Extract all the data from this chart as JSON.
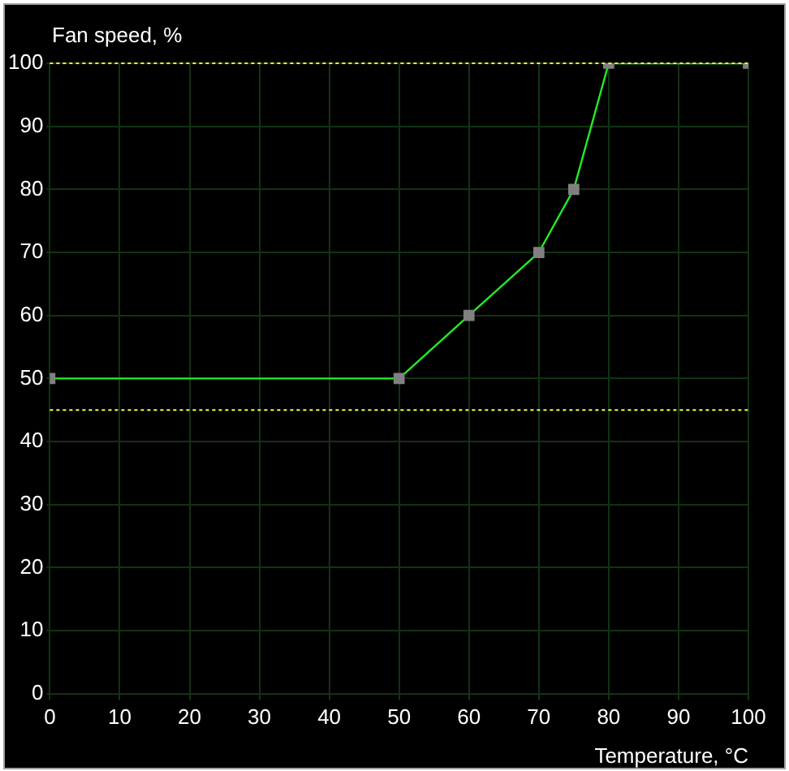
{
  "chart_data": {
    "type": "line",
    "xlabel": "Temperature, °C",
    "ylabel": "Fan speed, %",
    "x": [
      0,
      50,
      60,
      70,
      75,
      80,
      100
    ],
    "series": [
      {
        "color": "#22ee22",
        "values": [
          50,
          50,
          60,
          70,
          80,
          100,
          100
        ]
      }
    ],
    "xlim": [
      0,
      100
    ],
    "xticks": [
      0,
      10,
      20,
      30,
      40,
      50,
      60,
      70,
      80,
      90,
      100
    ],
    "ylim": [
      0,
      100
    ],
    "yticks": [
      0,
      10,
      20,
      30,
      40,
      50,
      60,
      70,
      80,
      90,
      100
    ],
    "grid": true,
    "marker": "square",
    "line_style": "solid",
    "ref_lines": [
      {
        "axis": "y",
        "value": 100,
        "color": "#ffff33",
        "line_style": "dotted"
      },
      {
        "axis": "y",
        "value": 45,
        "color": "#ffff33",
        "line_style": "dotted"
      }
    ]
  }
}
